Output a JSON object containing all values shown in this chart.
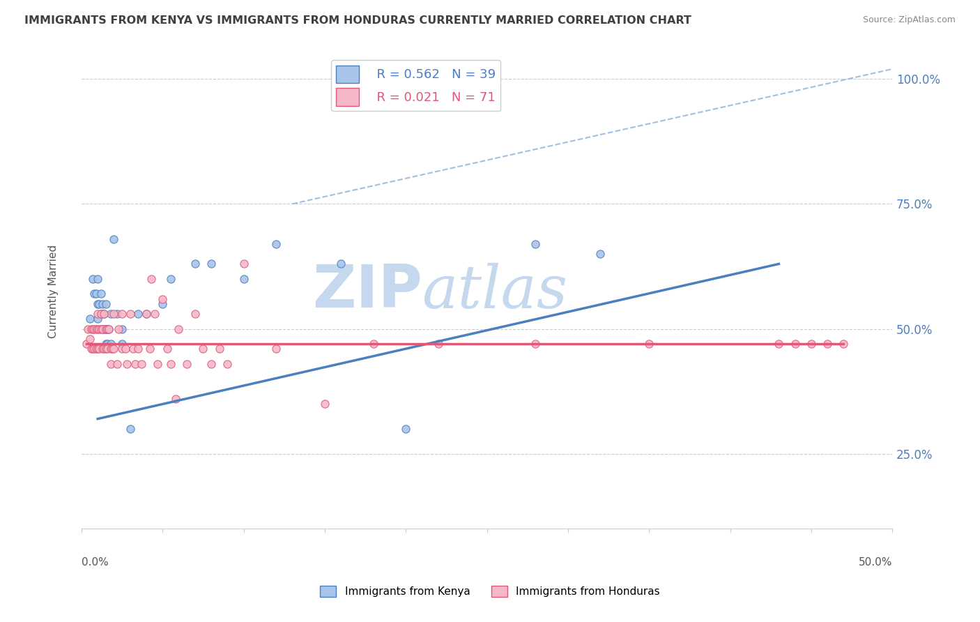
{
  "title": "IMMIGRANTS FROM KENYA VS IMMIGRANTS FROM HONDURAS CURRENTLY MARRIED CORRELATION CHART",
  "source": "Source: ZipAtlas.com",
  "ylabel": "Currently Married",
  "y_ticks": [
    0.25,
    0.5,
    0.75,
    1.0
  ],
  "y_tick_labels": [
    "25.0%",
    "50.0%",
    "75.0%",
    "100.0%"
  ],
  "x_range": [
    0.0,
    0.5
  ],
  "y_range": [
    0.1,
    1.05
  ],
  "legend_r_kenya": "R = 0.562",
  "legend_n_kenya": "N = 39",
  "legend_r_honduras": "R = 0.021",
  "legend_n_honduras": "N = 71",
  "legend_label_kenya": "Immigrants from Kenya",
  "legend_label_honduras": "Immigrants from Honduras",
  "color_kenya": "#a8c4e8",
  "color_honduras": "#f5b8c8",
  "color_kenya_line": "#4a7fc1",
  "color_honduras_line": "#e05878",
  "color_dashed": "#a0c0e0",
  "kenya_x": [
    0.005,
    0.007,
    0.008,
    0.009,
    0.01,
    0.01,
    0.01,
    0.011,
    0.012,
    0.012,
    0.013,
    0.013,
    0.014,
    0.014,
    0.015,
    0.015,
    0.015,
    0.016,
    0.016,
    0.017,
    0.018,
    0.018,
    0.02,
    0.022,
    0.025,
    0.025,
    0.03,
    0.035,
    0.04,
    0.05,
    0.055,
    0.07,
    0.08,
    0.1,
    0.12,
    0.16,
    0.2,
    0.28,
    0.32
  ],
  "kenya_y": [
    0.52,
    0.6,
    0.57,
    0.57,
    0.6,
    0.55,
    0.52,
    0.55,
    0.57,
    0.53,
    0.55,
    0.5,
    0.53,
    0.5,
    0.55,
    0.5,
    0.47,
    0.5,
    0.47,
    0.5,
    0.53,
    0.47,
    0.68,
    0.53,
    0.5,
    0.47,
    0.3,
    0.53,
    0.53,
    0.55,
    0.6,
    0.63,
    0.63,
    0.6,
    0.67,
    0.63,
    0.3,
    0.67,
    0.65
  ],
  "honduras_x": [
    0.003,
    0.004,
    0.005,
    0.006,
    0.006,
    0.007,
    0.007,
    0.008,
    0.008,
    0.009,
    0.009,
    0.01,
    0.01,
    0.01,
    0.011,
    0.011,
    0.012,
    0.012,
    0.013,
    0.013,
    0.014,
    0.014,
    0.015,
    0.015,
    0.016,
    0.016,
    0.017,
    0.018,
    0.018,
    0.019,
    0.02,
    0.02,
    0.022,
    0.023,
    0.025,
    0.025,
    0.027,
    0.028,
    0.03,
    0.032,
    0.033,
    0.035,
    0.037,
    0.04,
    0.042,
    0.043,
    0.045,
    0.047,
    0.05,
    0.053,
    0.055,
    0.058,
    0.06,
    0.065,
    0.07,
    0.075,
    0.08,
    0.085,
    0.09,
    0.1,
    0.12,
    0.15,
    0.18,
    0.22,
    0.28,
    0.35,
    0.43,
    0.44,
    0.45,
    0.46,
    0.47
  ],
  "honduras_y": [
    0.47,
    0.5,
    0.48,
    0.5,
    0.46,
    0.5,
    0.46,
    0.5,
    0.46,
    0.5,
    0.46,
    0.53,
    0.5,
    0.46,
    0.5,
    0.46,
    0.53,
    0.5,
    0.5,
    0.46,
    0.53,
    0.46,
    0.5,
    0.46,
    0.5,
    0.46,
    0.5,
    0.46,
    0.43,
    0.46,
    0.53,
    0.46,
    0.43,
    0.5,
    0.53,
    0.46,
    0.46,
    0.43,
    0.53,
    0.46,
    0.43,
    0.46,
    0.43,
    0.53,
    0.46,
    0.6,
    0.53,
    0.43,
    0.56,
    0.46,
    0.43,
    0.36,
    0.5,
    0.43,
    0.53,
    0.46,
    0.43,
    0.46,
    0.43,
    0.63,
    0.46,
    0.35,
    0.47,
    0.47,
    0.47,
    0.47,
    0.47,
    0.47,
    0.47,
    0.47,
    0.47
  ],
  "kenya_trend": [
    0.01,
    0.32,
    0.43,
    0.63
  ],
  "honduras_trend": [
    0.003,
    0.47,
    0.47,
    0.47
  ],
  "dashed_line": [
    0.13,
    0.75,
    0.5,
    1.02
  ],
  "background_color": "#ffffff",
  "grid_color": "#cccccc",
  "title_color": "#404040",
  "watermark_zip": "ZIP",
  "watermark_atlas": "atlas",
  "watermark_color_zip": "#c5d8ee",
  "watermark_color_atlas": "#c5d8ee"
}
